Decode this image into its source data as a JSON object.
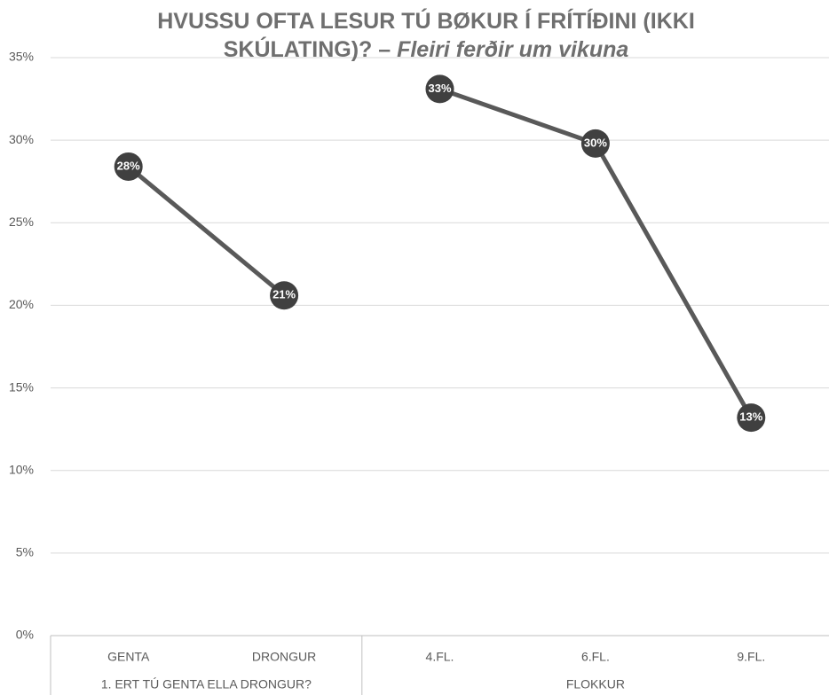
{
  "chart_data": {
    "type": "line",
    "title": "HVUSSU OFTA LESUR TÚ BØKUR Í FRÍTÍÐINI (IKKI SKÚLATING)? –",
    "subtitle": "Fleiri ferðir um vikuna",
    "groups": [
      {
        "name": "1. ERT TÚ GENTA ELLA DRONGUR?",
        "categories": [
          "GENTA",
          "DRONGUR"
        ],
        "values": [
          28.4,
          20.6
        ],
        "value_labels": [
          "28%",
          "21%"
        ]
      },
      {
        "name": "FLOKKUR",
        "categories": [
          "4.FL.",
          "6.FL.",
          "9.FL."
        ],
        "values": [
          33.1,
          29.8,
          13.2
        ],
        "value_labels": [
          "33%",
          "30%",
          "13%"
        ]
      }
    ],
    "color": "#595959",
    "marker_color": "#404040",
    "ylim": [
      0,
      35
    ],
    "yticks": [
      {
        "value": 0,
        "label": "0%"
      },
      {
        "value": 5,
        "label": "5%"
      },
      {
        "value": 10,
        "label": "10%"
      },
      {
        "value": 15,
        "label": "15%"
      },
      {
        "value": 20,
        "label": "20%"
      },
      {
        "value": 25,
        "label": "25%"
      },
      {
        "value": 30,
        "label": "30%"
      },
      {
        "value": 35,
        "label": "35%"
      }
    ],
    "grid": true
  }
}
